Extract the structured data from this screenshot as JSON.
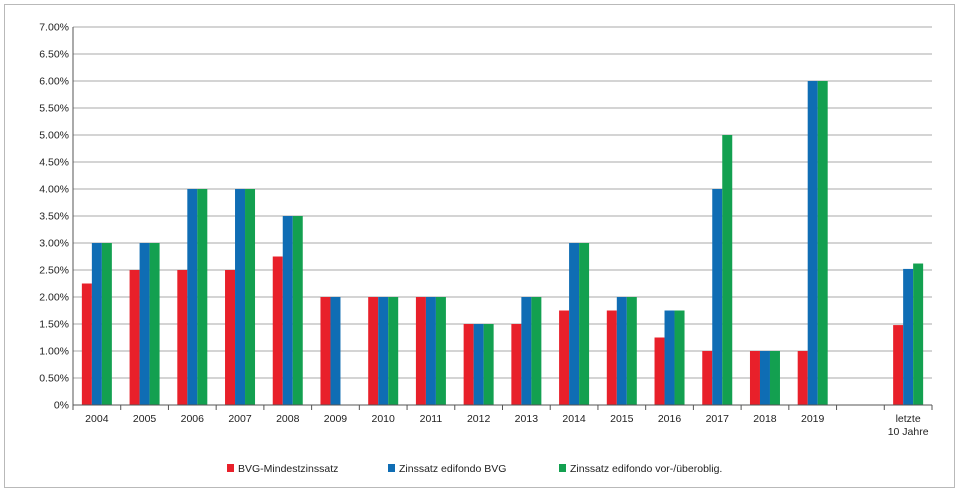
{
  "chart_data": {
    "type": "bar",
    "title": "",
    "xlabel": "",
    "ylabel": "",
    "ylim": [
      0,
      7
    ],
    "y_tick_step": 0.5,
    "y_tick_labels": [
      "0%",
      "0.50%",
      "1.00%",
      "1.50%",
      "2.00%",
      "2.50%",
      "3.00%",
      "3.50%",
      "4.00%",
      "4.50%",
      "5.00%",
      "5.50%",
      "6.00%",
      "6.50%",
      "7.00%"
    ],
    "grid": true,
    "legend_position": "bottom",
    "categories": [
      "2004",
      "2005",
      "2006",
      "2007",
      "2008",
      "2009",
      "2010",
      "2011",
      "2012",
      "2013",
      "2014",
      "2015",
      "2016",
      "2017",
      "2018",
      "2019",
      "",
      "letzte 10 Jahre"
    ],
    "category_label_lines": [
      [
        "2004"
      ],
      [
        "2005"
      ],
      [
        "2006"
      ],
      [
        "2007"
      ],
      [
        "2008"
      ],
      [
        "2009"
      ],
      [
        "2010"
      ],
      [
        "2011"
      ],
      [
        "2012"
      ],
      [
        "2013"
      ],
      [
        "2014"
      ],
      [
        "2015"
      ],
      [
        "2016"
      ],
      [
        "2017"
      ],
      [
        "2018"
      ],
      [
        "2019"
      ],
      [
        ""
      ],
      [
        "letzte",
        "10 Jahre"
      ]
    ],
    "series": [
      {
        "name": "BVG-Mindestzinssatz",
        "color": "#e8202a",
        "values": [
          2.25,
          2.5,
          2.5,
          2.5,
          2.75,
          2.0,
          2.0,
          2.0,
          1.5,
          1.5,
          1.75,
          1.75,
          1.25,
          1.0,
          1.0,
          1.0,
          null,
          1.48
        ]
      },
      {
        "name": "Zinssatz edifondo BVG",
        "color": "#0f6db4",
        "values": [
          3.0,
          3.0,
          4.0,
          4.0,
          3.5,
          2.0,
          2.0,
          2.0,
          1.5,
          2.0,
          3.0,
          2.0,
          1.75,
          4.0,
          1.0,
          6.0,
          null,
          2.52
        ]
      },
      {
        "name": "Zinssatz edifondo vor-/überoblig.",
        "color": "#13a050",
        "values": [
          3.0,
          3.0,
          4.0,
          4.0,
          3.5,
          null,
          2.0,
          2.0,
          1.5,
          2.0,
          3.0,
          2.0,
          1.75,
          5.0,
          1.0,
          6.0,
          null,
          2.62
        ]
      }
    ]
  }
}
